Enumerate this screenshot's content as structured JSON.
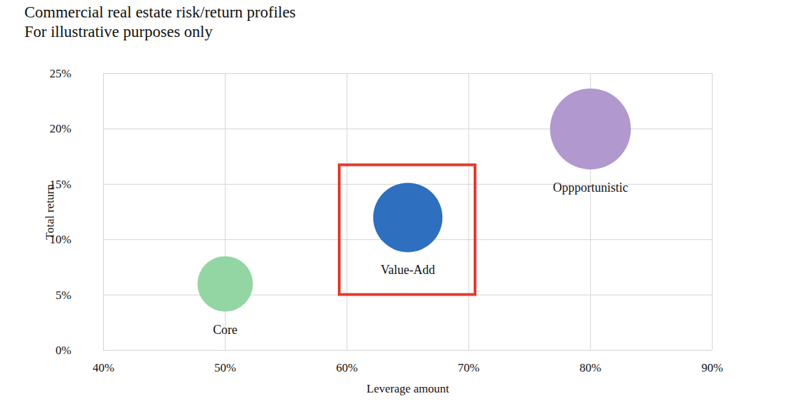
{
  "chart_data": {
    "type": "bubble",
    "title": "Commercial real estate risk/return profiles",
    "subtitle": "For illustrative purposes only",
    "x_label": "Leverage amount",
    "y_label": "Total return",
    "xlim": [
      40,
      90
    ],
    "xticks": [
      {
        "value": 40,
        "label": "40%"
      },
      {
        "value": 50,
        "label": "50%"
      },
      {
        "value": 60,
        "label": "60%"
      },
      {
        "value": 70,
        "label": "70%"
      },
      {
        "value": 80,
        "label": "80%"
      },
      {
        "value": 90,
        "label": "90%"
      }
    ],
    "ylim": [
      0,
      25
    ],
    "yticks": [
      {
        "value": 0,
        "label": "0%"
      },
      {
        "value": 5,
        "label": "5%"
      },
      {
        "value": 10,
        "label": "10%"
      },
      {
        "value": 15,
        "label": "15%"
      },
      {
        "value": 20,
        "label": "20%"
      },
      {
        "value": 25,
        "label": "25%"
      }
    ],
    "grid": true,
    "series": [
      {
        "name": "Core",
        "color": "#93d5a3",
        "x": [
          50
        ],
        "values": [
          6
        ],
        "sizes": [
          16
        ],
        "marker": "circle"
      },
      {
        "name": "Value-Add",
        "color": "#2e6fbf",
        "x": [
          65
        ],
        "values": [
          12
        ],
        "sizes": [
          25
        ],
        "marker": "boxed"
      },
      {
        "name": "Oppportunistic",
        "color": "#b198cf",
        "x": [
          80
        ],
        "values": [
          20
        ],
        "sizes": [
          34
        ],
        "marker": "circle"
      }
    ]
  }
}
